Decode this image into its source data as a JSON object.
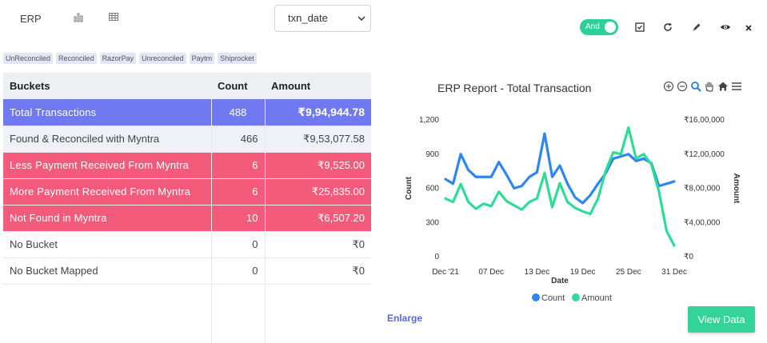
{
  "header": {
    "title": "ERP",
    "date_field": "txn_date"
  },
  "tags": [
    "UnReconciled",
    "Reconciled",
    "RazorPay",
    "Unreconciled",
    "Paytm",
    "Shiprocket"
  ],
  "table": {
    "columns": [
      "Buckets",
      "Count",
      "Amount"
    ],
    "rows": [
      {
        "bucket": "Total Transactions",
        "count": "488",
        "amount": "₹9,94,944.78",
        "style": "total"
      },
      {
        "bucket": "Found & Reconciled with Myntra",
        "count": "466",
        "amount": "₹9,53,077.58",
        "style": "found"
      },
      {
        "bucket": "Less Payment Received From Myntra",
        "count": "6",
        "amount": "₹9,525.00",
        "style": "red"
      },
      {
        "bucket": "More Payment Received From Myntra",
        "count": "6",
        "amount": "₹25,835.00",
        "style": "red"
      },
      {
        "bucket": "Not Found in Myntra",
        "count": "10",
        "amount": "₹6,507.20",
        "style": "red"
      },
      {
        "bucket": "No Bucket",
        "count": "0",
        "amount": "₹0",
        "style": "plain"
      },
      {
        "bucket": "No Bucket Mapped",
        "count": "0",
        "amount": "₹0",
        "style": "plain"
      }
    ]
  },
  "toolbar": {
    "toggle_label": "And",
    "icons": [
      "checkbox-icon",
      "refresh-icon",
      "pencil-icon",
      "eye-icon",
      "close-icon"
    ]
  },
  "chart_header": {
    "title": "ERP Report - Total Transaction",
    "tools": [
      "zoom-in-icon",
      "zoom-out-icon",
      "zoom-search-icon",
      "pan-hand-icon",
      "home-icon",
      "menu-icon"
    ]
  },
  "chart_data": {
    "type": "line",
    "title": "ERP Report - Total Transaction",
    "xlabel": "Date",
    "ylabel": "Count",
    "y2label": "Amount",
    "x_ticks": [
      "Dec '21",
      "07 Dec",
      "13 Dec",
      "19 Dec",
      "25 Dec",
      "31 Dec"
    ],
    "x_start": "2021-12-01",
    "x_end": "2021-12-31",
    "ylim": [
      0,
      1200
    ],
    "y_ticks": [
      "0",
      "300",
      "600",
      "900",
      "1,200"
    ],
    "y2lim": [
      0,
      1600000
    ],
    "y2_ticks": [
      "₹0",
      "₹4,00,000",
      "₹8,00,000",
      "₹12,00,000",
      "₹16,00,000"
    ],
    "grid": false,
    "legend_position": "bottom",
    "series": [
      {
        "name": "Count",
        "axis": "left",
        "color": "#2e86f2",
        "x": [
          "2021-12-01",
          "2021-12-02",
          "2021-12-03",
          "2021-12-04",
          "2021-12-05",
          "2021-12-06",
          "2021-12-07",
          "2021-12-08",
          "2021-12-09",
          "2021-12-10",
          "2021-12-11",
          "2021-12-12",
          "2021-12-13",
          "2021-12-14",
          "2021-12-15",
          "2021-12-16",
          "2021-12-17",
          "2021-12-18",
          "2021-12-19",
          "2021-12-20",
          "2021-12-21",
          "2021-12-22",
          "2021-12-23",
          "2021-12-24",
          "2021-12-25",
          "2021-12-26",
          "2021-12-27",
          "2021-12-28",
          "2021-12-29",
          "2021-12-30",
          "2021-12-31"
        ],
        "values": [
          680,
          640,
          900,
          760,
          700,
          700,
          700,
          830,
          720,
          600,
          620,
          700,
          740,
          1080,
          700,
          800,
          640,
          520,
          470,
          540,
          640,
          730,
          860,
          880,
          900,
          840,
          860,
          820,
          620,
          640,
          660
        ]
      },
      {
        "name": "Amount",
        "axis": "right",
        "color": "#2fdc96",
        "x": [
          "2021-12-01",
          "2021-12-02",
          "2021-12-03",
          "2021-12-04",
          "2021-12-05",
          "2021-12-06",
          "2021-12-07",
          "2021-12-08",
          "2021-12-09",
          "2021-12-10",
          "2021-12-11",
          "2021-12-12",
          "2021-12-13",
          "2021-12-14",
          "2021-12-15",
          "2021-12-16",
          "2021-12-17",
          "2021-12-18",
          "2021-12-19",
          "2021-12-20",
          "2021-12-21",
          "2021-12-22",
          "2021-12-23",
          "2021-12-24",
          "2021-12-25",
          "2021-12-26",
          "2021-12-27",
          "2021-12-28",
          "2021-12-29",
          "2021-12-30",
          "2021-12-31"
        ],
        "values": [
          680000,
          640000,
          850000,
          640000,
          560000,
          620000,
          590000,
          760000,
          650000,
          600000,
          550000,
          640000,
          680000,
          980000,
          580000,
          860000,
          640000,
          570000,
          530000,
          500000,
          680000,
          1000000,
          1220000,
          1200000,
          1510000,
          1150000,
          1200000,
          1080000,
          760000,
          300000,
          130000
        ]
      }
    ]
  },
  "footer": {
    "enlarge_label": "Enlarge",
    "view_button": "View Data"
  }
}
